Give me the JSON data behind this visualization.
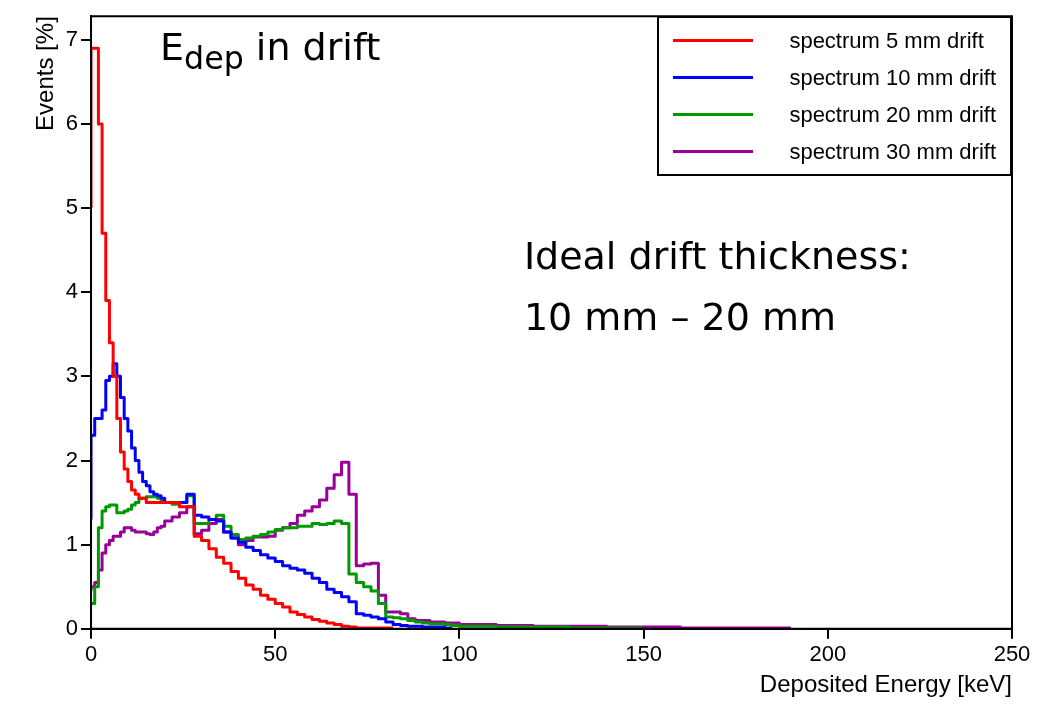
{
  "chart_data": {
    "type": "step",
    "xlabel": "Deposited Energy [keV]",
    "ylabel": "Events [%]",
    "x": [
      0,
      1,
      2,
      3,
      4,
      5,
      6,
      7,
      8,
      9,
      10,
      11,
      12,
      13,
      14,
      15,
      16,
      17,
      18,
      19,
      20,
      22,
      24,
      26,
      28,
      30,
      32,
      34,
      36,
      38,
      40,
      42,
      44,
      46,
      48,
      50,
      52,
      54,
      56,
      58,
      60,
      62,
      64,
      66,
      68,
      70,
      72,
      74,
      76,
      78,
      80,
      82,
      84,
      86,
      88,
      90,
      92,
      94,
      96,
      98,
      100,
      110,
      120,
      130,
      140,
      150,
      160,
      170,
      180,
      190
    ],
    "series": [
      {
        "name": "spectrum 5 mm drift",
        "color": "#ff0000",
        "values": [
          5.0,
          6.9,
          6.9,
          6.0,
          4.7,
          3.9,
          3.4,
          3.0,
          2.5,
          2.1,
          1.9,
          1.75,
          1.65,
          1.6,
          1.55,
          1.55,
          1.5,
          1.5,
          1.5,
          1.5,
          1.5,
          1.5,
          1.5,
          1.45,
          1.45,
          1.1,
          1.05,
          0.95,
          0.85,
          0.78,
          0.68,
          0.6,
          0.52,
          0.47,
          0.4,
          0.35,
          0.3,
          0.26,
          0.2,
          0.17,
          0.14,
          0.11,
          0.09,
          0.07,
          0.05,
          0.03,
          0.02,
          0.01,
          0.01,
          0.01,
          0.01,
          0.01,
          null,
          null,
          null,
          null,
          null,
          null,
          null,
          null,
          null,
          null,
          null,
          null,
          null,
          null,
          null,
          null,
          null,
          null
        ]
      },
      {
        "name": "spectrum 10 mm drift",
        "color": "#0000ff",
        "values": [
          1.3,
          2.3,
          2.5,
          2.5,
          2.6,
          2.95,
          3.0,
          3.15,
          3.0,
          2.75,
          2.5,
          2.35,
          2.15,
          2.0,
          1.86,
          1.75,
          1.7,
          1.63,
          1.6,
          1.58,
          1.55,
          1.5,
          1.5,
          1.5,
          1.6,
          1.35,
          1.33,
          1.3,
          1.28,
          1.15,
          1.08,
          1.03,
          0.97,
          0.93,
          0.88,
          0.84,
          0.8,
          0.75,
          0.72,
          0.7,
          0.66,
          0.6,
          0.55,
          0.47,
          0.43,
          0.38,
          0.32,
          0.18,
          0.16,
          0.14,
          0.12,
          0.08,
          0.05,
          0.04,
          0.03,
          0.03,
          0.02,
          0.02,
          0.02,
          0.01,
          null,
          null,
          null,
          null,
          null,
          null,
          null,
          null,
          null,
          null
        ]
      },
      {
        "name": "spectrum 20 mm drift",
        "color": "#009900",
        "values": [
          0.3,
          0.3,
          0.5,
          1.2,
          1.4,
          1.45,
          1.47,
          1.47,
          1.38,
          1.38,
          1.4,
          1.42,
          1.47,
          1.5,
          1.55,
          1.55,
          1.57,
          1.57,
          1.57,
          1.55,
          1.52,
          1.5,
          1.48,
          1.5,
          1.58,
          1.25,
          1.25,
          1.3,
          1.35,
          1.22,
          1.12,
          1.06,
          1.08,
          1.1,
          1.12,
          1.15,
          1.18,
          1.2,
          1.2,
          1.22,
          1.22,
          1.25,
          1.24,
          1.25,
          1.28,
          1.25,
          0.65,
          0.55,
          0.5,
          0.45,
          0.3,
          0.14,
          0.13,
          0.12,
          0.1,
          0.08,
          0.07,
          0.06,
          0.06,
          0.05,
          0.04,
          0.03,
          0.02,
          0.02,
          0.01,
          0.01,
          null,
          null,
          null,
          null
        ]
      },
      {
        "name": "spectrum 30 mm drift",
        "color": "#990099",
        "values": [
          0.45,
          0.5,
          0.55,
          0.7,
          0.9,
          1.0,
          1.05,
          1.1,
          1.1,
          1.15,
          1.2,
          1.2,
          1.17,
          1.15,
          1.15,
          1.15,
          1.13,
          1.12,
          1.15,
          1.2,
          1.22,
          1.28,
          1.33,
          1.38,
          1.45,
          1.13,
          1.17,
          1.25,
          1.3,
          1.15,
          1.08,
          1.0,
          1.05,
          1.09,
          1.09,
          1.1,
          1.17,
          1.2,
          1.25,
          1.35,
          1.4,
          1.45,
          1.53,
          1.67,
          1.83,
          1.98,
          1.6,
          0.75,
          0.77,
          0.78,
          0.4,
          0.2,
          0.2,
          0.18,
          0.12,
          0.1,
          0.1,
          0.08,
          0.08,
          0.07,
          0.07,
          0.05,
          0.04,
          0.03,
          0.03,
          0.02,
          0.02,
          0.01,
          0.01,
          0.01
        ]
      }
    ],
    "xlim": [
      0,
      250
    ],
    "xticks": [
      0,
      50,
      100,
      150,
      200,
      250
    ],
    "ylim": [
      0,
      7.28
    ],
    "yticks": [
      0,
      1,
      2,
      3,
      4,
      5,
      6,
      7
    ],
    "legend": "top right",
    "annotations": [
      "E$_{dep}$ in drift",
      "Ideal drift thickness:",
      "10 mm – 20 mm"
    ]
  }
}
